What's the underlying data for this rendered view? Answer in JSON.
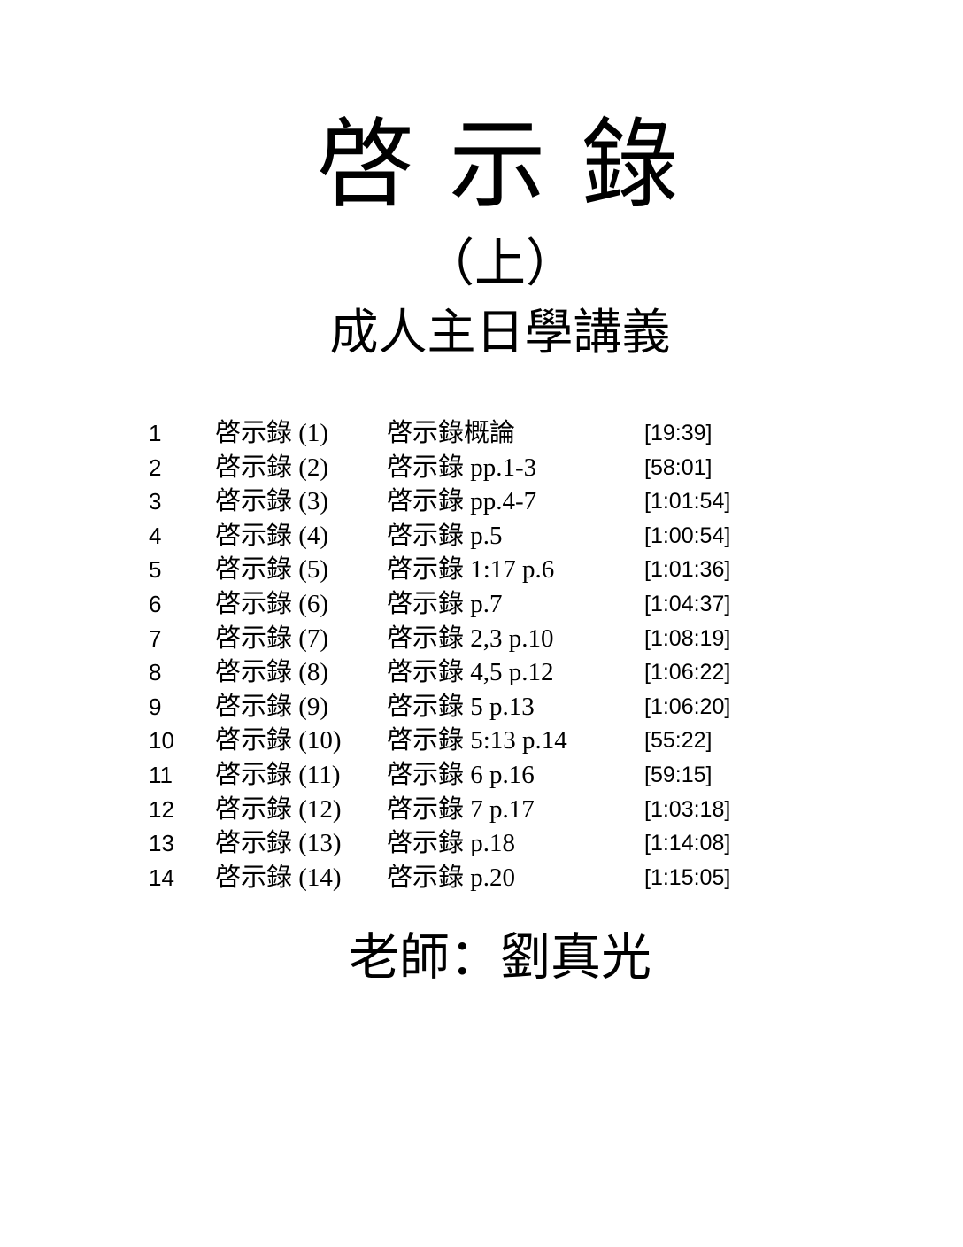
{
  "header": {
    "title": "啓 示 錄",
    "part": "（上）",
    "course": "成人主日學講義"
  },
  "lessons": {
    "rows": [
      {
        "num": "1",
        "lesson": "啓示錄 (1)",
        "topic": "啓示錄概論",
        "duration": "[19:39]"
      },
      {
        "num": "2",
        "lesson": "啓示錄 (2)",
        "topic": "啓示錄 pp.1-3",
        "duration": "[58:01]"
      },
      {
        "num": "3",
        "lesson": "啓示錄 (3)",
        "topic": "啓示錄 pp.4-7",
        "duration": "[1:01:54]"
      },
      {
        "num": "4",
        "lesson": "啓示錄 (4)",
        "topic": "啓示錄 p.5",
        "duration": "[1:00:54]"
      },
      {
        "num": "5",
        "lesson": "啓示錄 (5)",
        "topic": "啓示錄 1:17 p.6",
        "duration": "[1:01:36]"
      },
      {
        "num": "6",
        "lesson": "啓示錄 (6)",
        "topic": "啓示錄 p.7",
        "duration": "[1:04:37]"
      },
      {
        "num": "7",
        "lesson": "啓示錄 (7)",
        "topic": "啓示錄 2,3 p.10",
        "duration": "[1:08:19]"
      },
      {
        "num": "8",
        "lesson": "啓示錄 (8)",
        "topic": "啓示錄 4,5 p.12",
        "duration": "[1:06:22]"
      },
      {
        "num": "9",
        "lesson": "啓示錄 (9)",
        "topic": "啓示錄 5 p.13",
        "duration": "[1:06:20]"
      },
      {
        "num": "10",
        "lesson": "啓示錄 (10)",
        "topic": "啓示錄 5:13 p.14",
        "duration": "[55:22]"
      },
      {
        "num": "11",
        "lesson": "啓示錄 (11)",
        "topic": "啓示錄 6 p.16",
        "duration": "[59:15]"
      },
      {
        "num": "12",
        "lesson": "啓示錄 (12)",
        "topic": "啓示錄 7 p.17",
        "duration": "[1:03:18]"
      },
      {
        "num": "13",
        "lesson": "啓示錄 (13)",
        "topic": "啓示錄 p.18",
        "duration": "[1:14:08]"
      },
      {
        "num": "14",
        "lesson": "啓示錄 (14)",
        "topic": "啓示錄 p.20",
        "duration": "[1:15:05]"
      }
    ]
  },
  "footer": {
    "teacher": "老師：劉真光"
  },
  "colors": {
    "text": "#000000",
    "background": "#ffffff"
  }
}
